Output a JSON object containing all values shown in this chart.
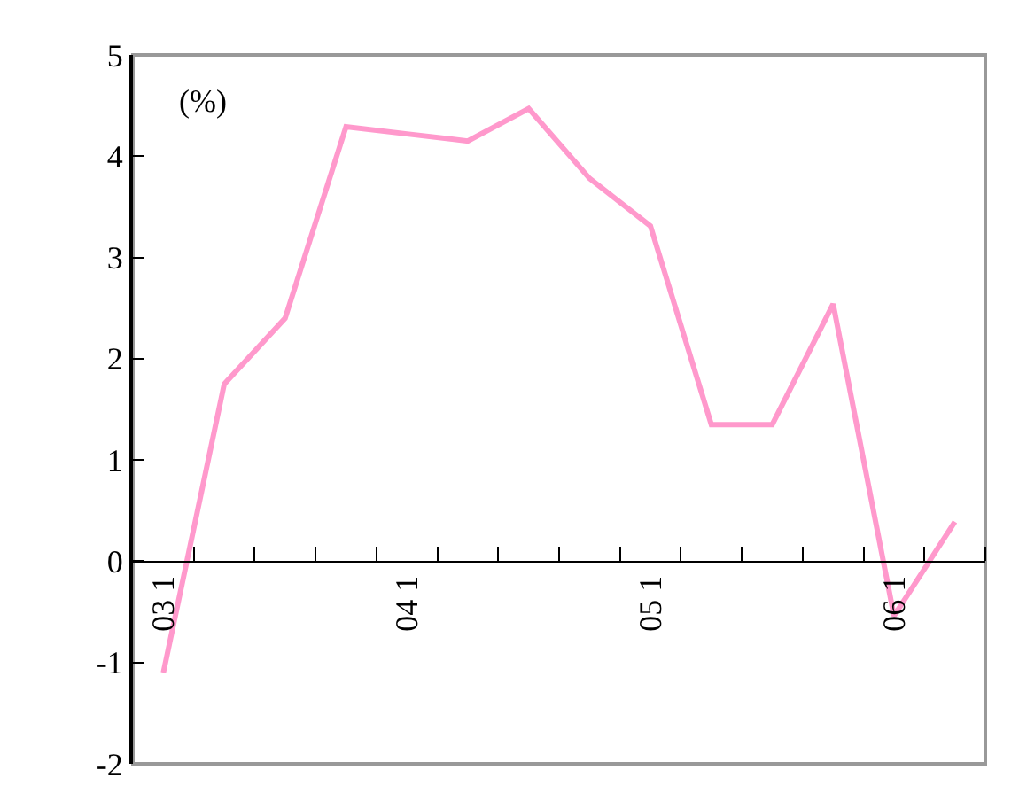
{
  "chart_data": {
    "type": "line",
    "categories": [
      "03 1",
      null,
      null,
      null,
      "04 1",
      null,
      null,
      null,
      "05 1",
      null,
      null,
      null,
      "06 1",
      null
    ],
    "series": [
      {
        "color": "#ff99cc",
        "values": [
          -1.1,
          1.75,
          2.4,
          4.29,
          4.22,
          4.15,
          4.47,
          3.78,
          3.31,
          1.35,
          1.35,
          2.54,
          -0.54,
          0.39
        ]
      }
    ],
    "ylim": [
      -2,
      5
    ],
    "yticks": [
      -2,
      -1,
      0,
      1,
      2,
      3,
      4,
      5
    ],
    "annotations": [
      "(%)"
    ],
    "line_style": "solid"
  }
}
